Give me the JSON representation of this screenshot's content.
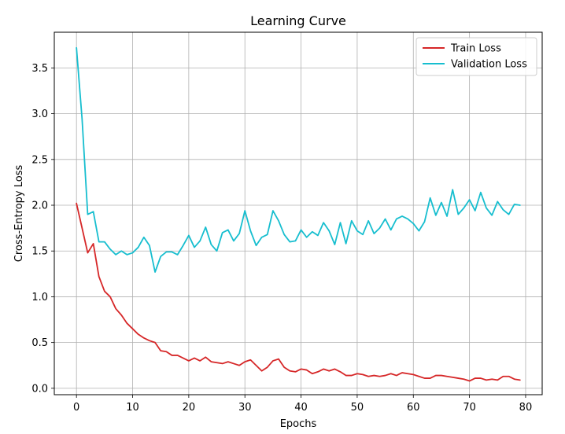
{
  "chart_data": {
    "type": "line",
    "title": "Learning Curve",
    "xlabel": "Epochs",
    "ylabel": "Cross-Entropy Loss",
    "xlim": [
      -3.95,
      82.95
    ],
    "ylim": [
      -0.07,
      3.89
    ],
    "xticks": [
      0,
      10,
      20,
      30,
      40,
      50,
      60,
      70,
      80
    ],
    "yticks": [
      0.0,
      0.5,
      1.0,
      1.5,
      2.0,
      2.5,
      3.0,
      3.5
    ],
    "ytick_labels": [
      "0.0",
      "0.5",
      "1.0",
      "1.5",
      "2.0",
      "2.5",
      "3.0",
      "3.5"
    ],
    "grid": true,
    "legend_position": "top-right",
    "x": [
      0,
      1,
      2,
      3,
      4,
      5,
      6,
      7,
      8,
      9,
      10,
      11,
      12,
      13,
      14,
      15,
      16,
      17,
      18,
      19,
      20,
      21,
      22,
      23,
      24,
      25,
      26,
      27,
      28,
      29,
      30,
      31,
      32,
      33,
      34,
      35,
      36,
      37,
      38,
      39,
      40,
      41,
      42,
      43,
      44,
      45,
      46,
      47,
      48,
      49,
      50,
      51,
      52,
      53,
      54,
      55,
      56,
      57,
      58,
      59,
      60,
      61,
      62,
      63,
      64,
      65,
      66,
      67,
      68,
      69,
      70,
      71,
      72,
      73,
      74,
      75,
      76,
      77,
      78,
      79
    ],
    "series": [
      {
        "name": "Train Loss",
        "color": "#d62728",
        "values": [
          2.02,
          1.75,
          1.48,
          1.58,
          1.22,
          1.06,
          1.0,
          0.87,
          0.8,
          0.71,
          0.65,
          0.59,
          0.55,
          0.52,
          0.5,
          0.41,
          0.4,
          0.36,
          0.36,
          0.33,
          0.3,
          0.33,
          0.3,
          0.34,
          0.29,
          0.28,
          0.27,
          0.29,
          0.27,
          0.25,
          0.29,
          0.31,
          0.25,
          0.19,
          0.23,
          0.3,
          0.32,
          0.23,
          0.19,
          0.18,
          0.21,
          0.2,
          0.16,
          0.18,
          0.21,
          0.19,
          0.21,
          0.18,
          0.14,
          0.14,
          0.16,
          0.15,
          0.13,
          0.14,
          0.13,
          0.14,
          0.16,
          0.14,
          0.17,
          0.16,
          0.15,
          0.13,
          0.11,
          0.11,
          0.14,
          0.14,
          0.13,
          0.12,
          0.11,
          0.1,
          0.08,
          0.11,
          0.11,
          0.09,
          0.1,
          0.09,
          0.13,
          0.13,
          0.1,
          0.09
        ]
      },
      {
        "name": "Validation Loss",
        "color": "#17becf",
        "values": [
          3.72,
          2.94,
          1.9,
          1.93,
          1.6,
          1.6,
          1.52,
          1.46,
          1.5,
          1.46,
          1.48,
          1.54,
          1.65,
          1.56,
          1.27,
          1.44,
          1.49,
          1.49,
          1.46,
          1.56,
          1.67,
          1.54,
          1.61,
          1.76,
          1.57,
          1.5,
          1.7,
          1.73,
          1.61,
          1.69,
          1.94,
          1.72,
          1.56,
          1.65,
          1.68,
          1.94,
          1.83,
          1.68,
          1.6,
          1.61,
          1.73,
          1.65,
          1.71,
          1.67,
          1.81,
          1.72,
          1.57,
          1.81,
          1.58,
          1.83,
          1.72,
          1.68,
          1.83,
          1.69,
          1.75,
          1.85,
          1.73,
          1.85,
          1.88,
          1.85,
          1.8,
          1.72,
          1.82,
          2.08,
          1.89,
          2.03,
          1.88,
          2.17,
          1.9,
          1.97,
          2.06,
          1.94,
          2.14,
          1.97,
          1.89,
          2.04,
          1.95,
          1.9,
          2.01,
          2.0
        ]
      }
    ]
  }
}
